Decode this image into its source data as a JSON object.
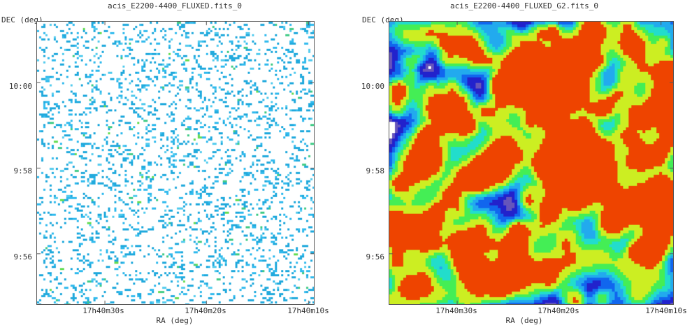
{
  "panels": [
    {
      "title": "acis_E2200-4400_FLUXED.fits_0",
      "ylabel": "DEC (deg)",
      "xlabel": "RA (deg)",
      "yticks": [
        "10:00",
        "9:58",
        "9:56"
      ],
      "xticks": [
        "17h40m30s",
        "17h40m20s",
        "17h40m10s"
      ],
      "style": "sparse",
      "colors": [
        "#22aadd",
        "#33bbee",
        "#55ccee",
        "#44cc88",
        "#66dd55"
      ]
    },
    {
      "title": "acis_E2200-4400_FLUXED_G2.fits_0",
      "ylabel": "DEC (deg)",
      "xlabel": "RA (deg)",
      "yticks": [
        "10:00",
        "9:58",
        "9:56"
      ],
      "xticks": [
        "17h40m30s",
        "17h40m20s",
        "17h40m10s"
      ],
      "style": "smoothed",
      "colors": [
        "#ffffff",
        "#6655bb",
        "#2222cc",
        "#1166ee",
        "#22aaee",
        "#22ddcc",
        "#44ee55",
        "#ccee22",
        "#ee4400"
      ]
    }
  ]
}
